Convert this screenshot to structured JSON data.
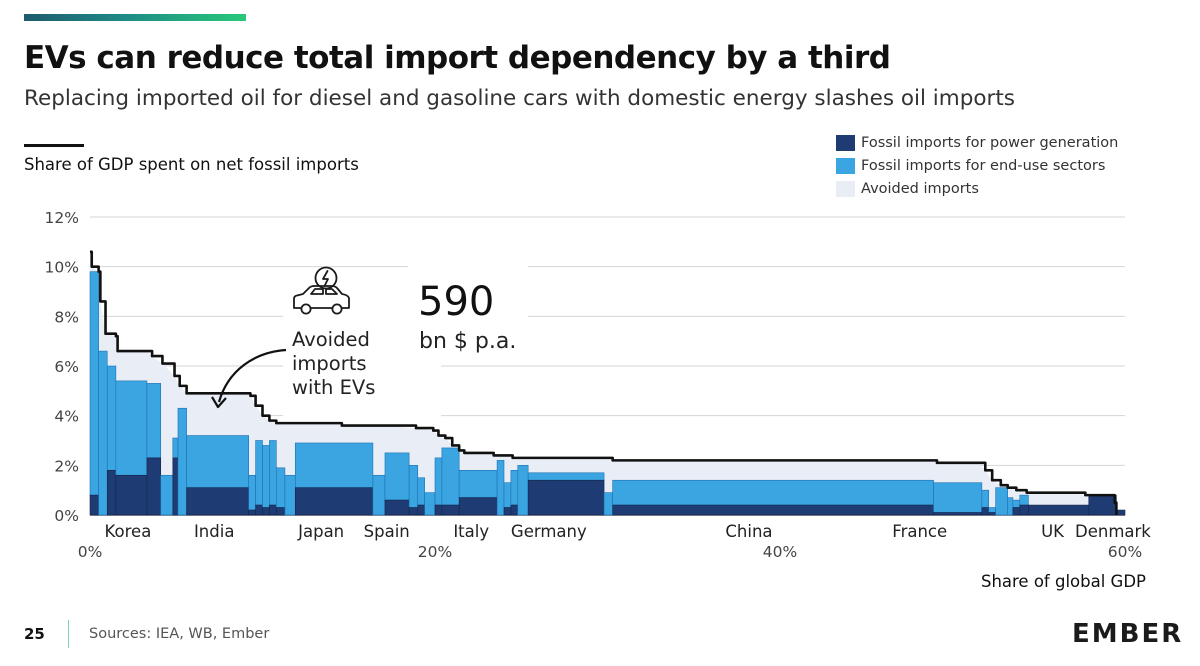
{
  "header": {
    "title": "EVs can reduce total import dependency by a third",
    "subtitle": "Replacing imported oil for diesel and gasoline cars with domestic energy slashes oil imports",
    "y_axis_title": "Share of GDP spent on net fossil imports"
  },
  "legend": [
    {
      "label": "Fossil imports for power generation",
      "color": "#1f3b73"
    },
    {
      "label": "Fossil imports for end-use sectors",
      "color": "#3ba5e2"
    },
    {
      "label": "Avoided imports",
      "color": "#e9eef6"
    }
  ],
  "annotation": {
    "avoided_text": [
      "Avoided",
      "imports",
      "with EVs"
    ],
    "big_number": "590",
    "unit": "bn $ p.a.",
    "icon": "ev-car-icon"
  },
  "chart_data": {
    "type": "bar",
    "title": "Share of GDP spent on net fossil imports",
    "xlabel": "Share of global GDP",
    "ylabel": "Share of GDP spent on net fossil imports",
    "xlim": [
      0,
      60
    ],
    "ylim": [
      0,
      12
    ],
    "grid": true,
    "y_ticks": [
      "0%",
      "2%",
      "4%",
      "6%",
      "8%",
      "10%",
      "12%"
    ],
    "x_ticks": [
      {
        "value": 0,
        "label": "0%"
      },
      {
        "value": 20,
        "label": "20%"
      },
      {
        "value": 40,
        "label": "40%"
      },
      {
        "value": 60,
        "label": "60%"
      }
    ],
    "country_labels": [
      {
        "label": "Korea",
        "x": 2.2
      },
      {
        "label": "India",
        "x": 7.2
      },
      {
        "label": "Japan",
        "x": 13.4
      },
      {
        "label": "Spain",
        "x": 17.2
      },
      {
        "label": "Italy",
        "x": 22.1
      },
      {
        "label": "Germany",
        "x": 26.6
      },
      {
        "label": "China",
        "x": 38.2
      },
      {
        "label": "France",
        "x": 48.1
      },
      {
        "label": "UK",
        "x": 55.8
      },
      {
        "label": "Denmark",
        "x": 59.3
      }
    ],
    "bars": [
      {
        "x0": 0.0,
        "x1": 0.5,
        "power": 0.8,
        "enduse": 9.8
      },
      {
        "x0": 0.5,
        "x1": 1.0,
        "power": 0.0,
        "enduse": 6.6
      },
      {
        "x0": 1.0,
        "x1": 1.5,
        "power": 1.8,
        "enduse": 6.0
      },
      {
        "x0": 1.5,
        "x1": 3.3,
        "power": 1.6,
        "enduse": 5.4
      },
      {
        "x0": 3.3,
        "x1": 4.1,
        "power": 2.3,
        "enduse": 5.3
      },
      {
        "x0": 4.1,
        "x1": 4.8,
        "power": 0.0,
        "enduse": 1.6
      },
      {
        "x0": 4.8,
        "x1": 5.1,
        "power": 2.3,
        "enduse": 3.1
      },
      {
        "x0": 5.1,
        "x1": 5.6,
        "power": 0.0,
        "enduse": 4.3
      },
      {
        "x0": 5.6,
        "x1": 9.2,
        "power": 1.1,
        "enduse": 3.2
      },
      {
        "x0": 9.2,
        "x1": 9.6,
        "power": 0.2,
        "enduse": 1.6
      },
      {
        "x0": 9.6,
        "x1": 10.0,
        "power": 0.4,
        "enduse": 3.0
      },
      {
        "x0": 10.0,
        "x1": 10.4,
        "power": 0.3,
        "enduse": 2.8
      },
      {
        "x0": 10.4,
        "x1": 10.8,
        "power": 0.4,
        "enduse": 3.0
      },
      {
        "x0": 10.8,
        "x1": 11.3,
        "power": 0.3,
        "enduse": 1.9
      },
      {
        "x0": 11.3,
        "x1": 11.9,
        "power": 0.0,
        "enduse": 1.6
      },
      {
        "x0": 11.9,
        "x1": 16.4,
        "power": 1.1,
        "enduse": 2.9
      },
      {
        "x0": 16.4,
        "x1": 17.1,
        "power": 0.0,
        "enduse": 1.6
      },
      {
        "x0": 17.1,
        "x1": 18.5,
        "power": 0.6,
        "enduse": 2.5
      },
      {
        "x0": 18.5,
        "x1": 19.0,
        "power": 0.3,
        "enduse": 2.0
      },
      {
        "x0": 19.0,
        "x1": 19.4,
        "power": 0.4,
        "enduse": 1.5
      },
      {
        "x0": 19.4,
        "x1": 20.0,
        "power": 0.0,
        "enduse": 0.9
      },
      {
        "x0": 20.0,
        "x1": 20.4,
        "power": 0.4,
        "enduse": 2.3
      },
      {
        "x0": 20.4,
        "x1": 21.4,
        "power": 0.4,
        "enduse": 2.7
      },
      {
        "x0": 21.4,
        "x1": 23.6,
        "power": 0.7,
        "enduse": 1.8
      },
      {
        "x0": 23.6,
        "x1": 24.0,
        "power": 0.0,
        "enduse": 2.2
      },
      {
        "x0": 24.0,
        "x1": 24.4,
        "power": 0.3,
        "enduse": 1.3
      },
      {
        "x0": 24.4,
        "x1": 24.8,
        "power": 0.4,
        "enduse": 1.8
      },
      {
        "x0": 24.8,
        "x1": 25.4,
        "power": 0.0,
        "enduse": 2.0
      },
      {
        "x0": 25.4,
        "x1": 29.8,
        "power": 1.4,
        "enduse": 1.7
      },
      {
        "x0": 29.8,
        "x1": 30.3,
        "power": 0.0,
        "enduse": 0.9
      },
      {
        "x0": 30.3,
        "x1": 48.9,
        "power": 0.4,
        "enduse": 1.4
      },
      {
        "x0": 48.9,
        "x1": 51.7,
        "power": 0.1,
        "enduse": 1.3
      },
      {
        "x0": 51.7,
        "x1": 52.1,
        "power": 0.3,
        "enduse": 1.0
      },
      {
        "x0": 52.1,
        "x1": 52.5,
        "power": 0.1,
        "enduse": 0.3
      },
      {
        "x0": 52.5,
        "x1": 53.2,
        "power": 0.0,
        "enduse": 1.1
      },
      {
        "x0": 53.2,
        "x1": 53.5,
        "power": 0.0,
        "enduse": 0.7
      },
      {
        "x0": 53.5,
        "x1": 53.9,
        "power": 0.3,
        "enduse": 0.6
      },
      {
        "x0": 53.9,
        "x1": 54.4,
        "power": 0.4,
        "enduse": 0.8
      },
      {
        "x0": 54.4,
        "x1": 58.2,
        "power": 0.4,
        "enduse": 0.4
      },
      {
        "x0": 55.9,
        "x1": 57.9,
        "power": 0.0,
        "enduse": 0.0
      },
      {
        "x0": 57.9,
        "x1": 59.5,
        "power": 0.8,
        "enduse": 0.8
      },
      {
        "x0": 59.5,
        "x1": 60.0,
        "power": 0.2,
        "enduse": 0.2
      }
    ],
    "total_line": [
      [
        0.0,
        10.6
      ],
      [
        0.1,
        10.0
      ],
      [
        0.5,
        9.8
      ],
      [
        0.6,
        8.6
      ],
      [
        0.9,
        7.3
      ],
      [
        1.5,
        7.2
      ],
      [
        1.6,
        6.6
      ],
      [
        3.3,
        6.6
      ],
      [
        3.6,
        6.4
      ],
      [
        4.2,
        6.1
      ],
      [
        4.9,
        5.6
      ],
      [
        5.2,
        5.2
      ],
      [
        5.6,
        4.9
      ],
      [
        9.0,
        4.9
      ],
      [
        9.3,
        4.8
      ],
      [
        9.6,
        4.4
      ],
      [
        10.0,
        4.0
      ],
      [
        10.4,
        3.8
      ],
      [
        10.8,
        3.7
      ],
      [
        14.3,
        3.7
      ],
      [
        14.6,
        3.6
      ],
      [
        16.8,
        3.6
      ],
      [
        18.9,
        3.5
      ],
      [
        19.9,
        3.4
      ],
      [
        20.2,
        3.2
      ],
      [
        20.6,
        3.1
      ],
      [
        21.0,
        2.8
      ],
      [
        21.4,
        2.6
      ],
      [
        21.7,
        2.5
      ],
      [
        22.9,
        2.5
      ],
      [
        23.4,
        2.4
      ],
      [
        24.0,
        2.4
      ],
      [
        24.5,
        2.3
      ],
      [
        29.9,
        2.3
      ],
      [
        30.3,
        2.2
      ],
      [
        48.9,
        2.2
      ],
      [
        49.1,
        2.1
      ],
      [
        51.5,
        2.1
      ],
      [
        51.9,
        1.8
      ],
      [
        52.3,
        1.4
      ],
      [
        52.8,
        1.2
      ],
      [
        53.2,
        1.1
      ],
      [
        53.7,
        1.0
      ],
      [
        54.3,
        0.9
      ],
      [
        57.3,
        0.9
      ],
      [
        57.7,
        0.8
      ],
      [
        58.6,
        0.8
      ],
      [
        59.4,
        0.5
      ],
      [
        59.5,
        0.0
      ]
    ]
  },
  "footer": {
    "page_number": "25",
    "sources": "Sources: IEA, WB, Ember",
    "logo": "EMBER"
  }
}
